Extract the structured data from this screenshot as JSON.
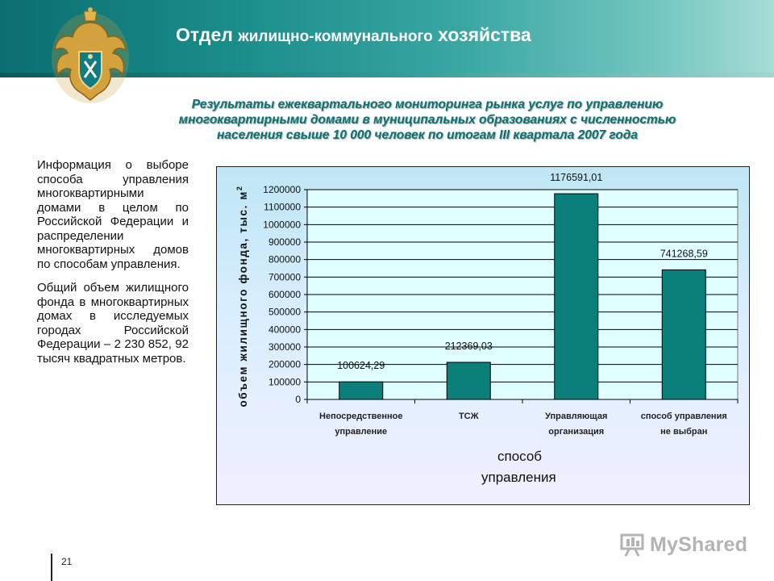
{
  "header": {
    "title_a": "Отдел",
    "title_b": "жилищно-коммунального",
    "title_c": "хозяйства"
  },
  "subtitle": {
    "line1": "Результаты ежеквартального мониторинга рынка услуг по управлению",
    "line2": "многоквартирными домами в муниципальных образованиях с численностью",
    "line3": "населения свыше 10 000 человек по итогам III квартала 2007 года"
  },
  "left_text": {
    "p1": "Информация о выборе способа управления многоквартирными домами в целом по Российской Федерации и распределении многоквартирных домов по способам управления.",
    "p2": "Общий объем жилищного фонда в многоквартирных домах в исследуемых городах Российской Федерации – 2 230 852, 92 тысяч квадратных метров."
  },
  "chart_data": {
    "type": "bar",
    "categories": [
      [
        "Непосредственное",
        "управление"
      ],
      [
        "ТСЖ"
      ],
      [
        "Управляющая",
        "организация"
      ],
      [
        "способ управления",
        "не выбран"
      ]
    ],
    "values": [
      100624.29,
      212369.03,
      1176591.01,
      741268.59
    ],
    "value_labels": [
      "100624,29",
      "212369,03",
      "1176591,01",
      "741268,59"
    ],
    "ylabel": "объем жилищного фонда, тыс. м",
    "ylabel_sup": "2",
    "xlabel_line1": "способ",
    "xlabel_line2": "управления",
    "ylim": [
      0,
      1200000
    ],
    "yticks": [
      0,
      100000,
      200000,
      300000,
      400000,
      500000,
      600000,
      700000,
      800000,
      900000,
      1000000,
      1100000,
      1200000
    ],
    "grid": true,
    "colors": {
      "bar": "#0b7f7a",
      "plot_bg": "#e0ffff",
      "subtitle": "#0a7272"
    }
  },
  "footer": {
    "page_number": "21",
    "watermark": "MyShared"
  }
}
